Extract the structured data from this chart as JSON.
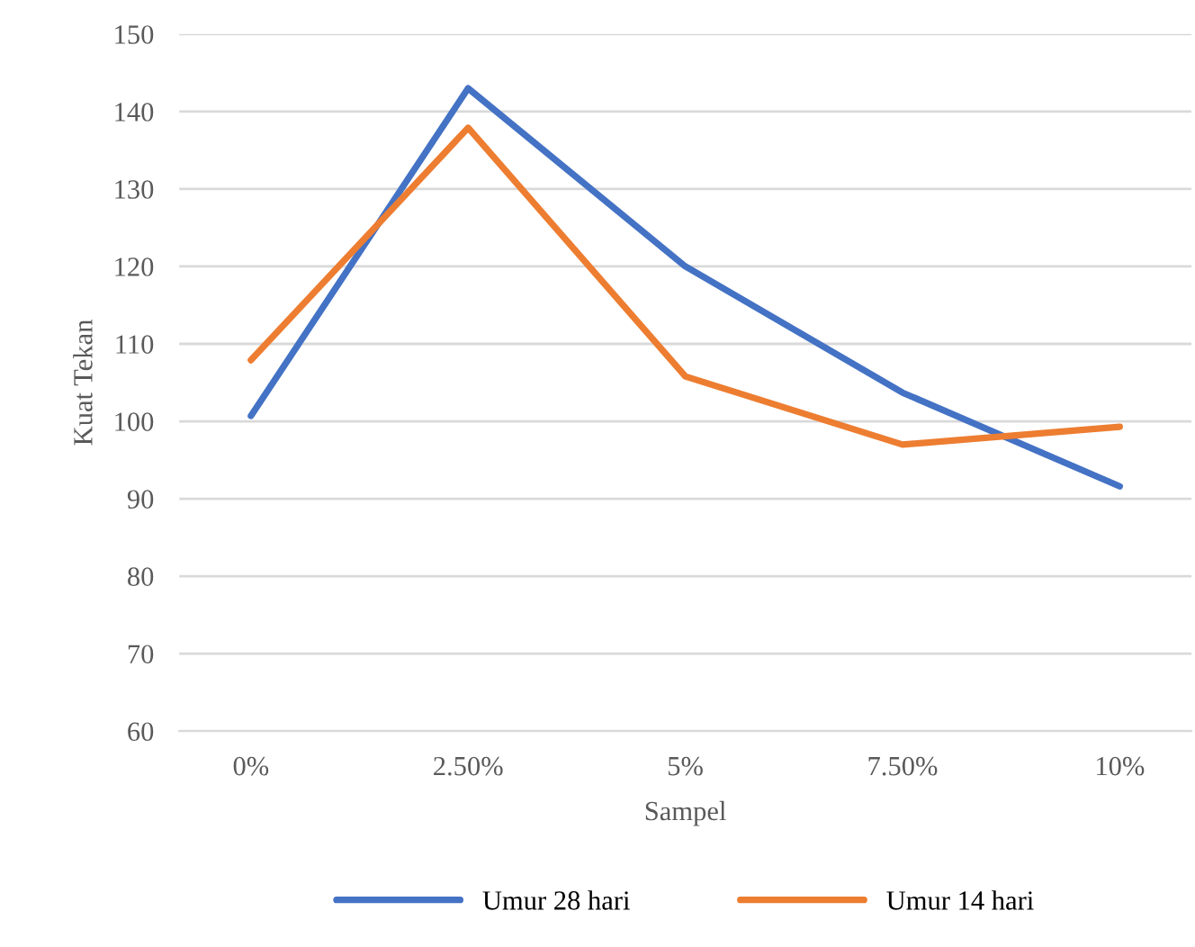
{
  "chart_data": {
    "type": "line",
    "xlabel": "Sampel",
    "ylabel": "Kuat Tekan",
    "categories": [
      "0%",
      "2.50%",
      "5%",
      "7.50%",
      "10%"
    ],
    "series": [
      {
        "name": "Umur 28 hari",
        "color": "#4472c4",
        "values": [
          100.7,
          143,
          120,
          103.7,
          91.6
        ]
      },
      {
        "name": "Umur 14 hari",
        "color": "#ed7d31",
        "values": [
          107.9,
          137.9,
          105.8,
          97,
          99.3
        ]
      }
    ],
    "ylim": [
      60,
      150
    ],
    "yticks": [
      60,
      70,
      80,
      90,
      100,
      110,
      120,
      130,
      140,
      150
    ],
    "grid": "y",
    "legend": "bottom",
    "marker": "none",
    "line_style": "solid"
  }
}
